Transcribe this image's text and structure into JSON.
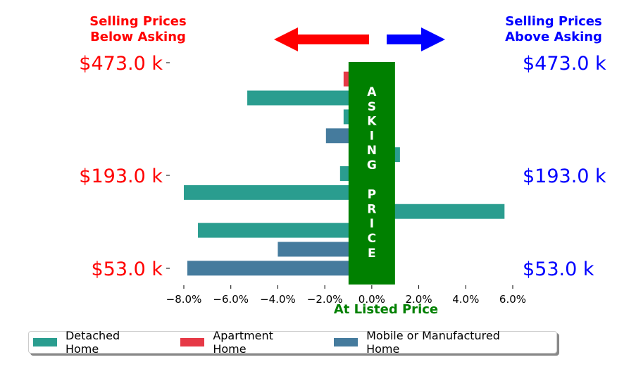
{
  "chart_data": {
    "type": "bar",
    "orientation": "horizontal",
    "header_left": [
      "Selling Prices",
      "Below Asking"
    ],
    "header_right": [
      "Selling Prices",
      "Above Asking"
    ],
    "xlabel": "At Listed Price",
    "center_band_label": [
      "A",
      "S",
      "K",
      "I",
      "N",
      "G",
      "",
      "P",
      "R",
      "I",
      "C",
      "E"
    ],
    "x_ticks": [
      "−8.0%",
      "−6.0%",
      "−4.0%",
      "−2.0%",
      "0.0%",
      "2.0%",
      "4.0%",
      "6.0%"
    ],
    "xlim": [
      -8.6,
      6.6
    ],
    "y_tick_labels": [
      "$473.0 k",
      "$193.0 k",
      "$53.0 k"
    ],
    "y_tick_rows": [
      0,
      6,
      11
    ],
    "bars": [
      {
        "series": "Apartment Home",
        "value": -1.2
      },
      {
        "series": "Detached Home",
        "value": -5.3
      },
      {
        "series": "Detached Home",
        "value": -1.2
      },
      {
        "series": "Mobile or Manufactured Home",
        "value": -1.95
      },
      {
        "series": "Detached Home",
        "value": 1.2
      },
      {
        "series": "Detached Home",
        "value": -1.35
      },
      {
        "series": "Detached Home",
        "value": -8.0
      },
      {
        "series": "Detached Home",
        "value": 5.65
      },
      {
        "series": "Detached Home",
        "value": -7.4
      },
      {
        "series": "Mobile or Manufactured Home",
        "value": -4.0
      },
      {
        "series": "Mobile or Manufactured Home",
        "value": -7.85
      }
    ],
    "legend": [
      {
        "name": "Detached Home",
        "color": "#2a9d8f"
      },
      {
        "name": "Apartment Home",
        "color": "#e63946"
      },
      {
        "name": "Mobile or Manufactured Home",
        "color": "#457b9d"
      }
    ],
    "colors": {
      "left_text": "#ff0000",
      "right_text": "#0000ff",
      "band": "#008000",
      "xlabel": "#008000"
    },
    "legend_position": "bottom",
    "grid": false
  }
}
